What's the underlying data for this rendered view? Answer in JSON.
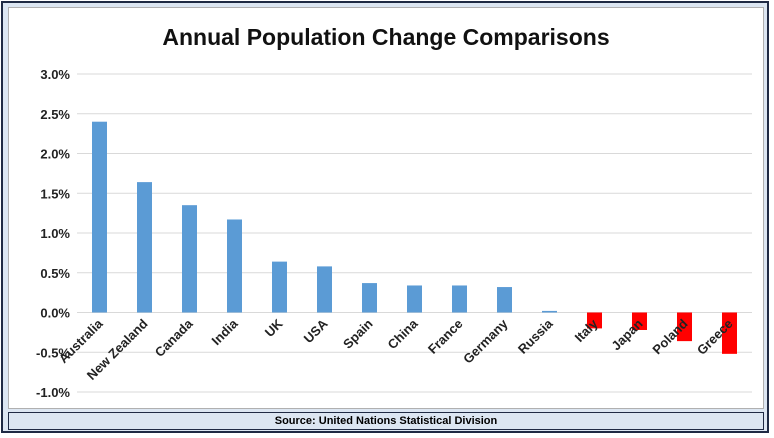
{
  "chart_data": {
    "type": "bar",
    "title": "Annual Population Change Comparisons",
    "source": "Source: United Nations Statistical Division",
    "categories": [
      "Australia",
      "New Zealand",
      "Canada",
      "India",
      "UK",
      "USA",
      "Spain",
      "China",
      "France",
      "Germany",
      "Russia",
      "Italy",
      "Japan",
      "Poland",
      "Greece"
    ],
    "values": [
      2.4,
      1.64,
      1.35,
      1.17,
      0.64,
      0.58,
      0.37,
      0.34,
      0.34,
      0.32,
      0.02,
      -0.2,
      -0.22,
      -0.36,
      -0.52
    ],
    "yticks": [
      "3.0%",
      "2.5%",
      "2.0%",
      "1.5%",
      "1.0%",
      "0.5%",
      "0.0%",
      "-0.5%",
      "-1.0%"
    ],
    "ylim": [
      -1.0,
      3.0
    ],
    "grid": true,
    "colors": {
      "positive": "#5b9bd5",
      "negative": "#ff0000",
      "grid": "#d9d9d9"
    }
  }
}
